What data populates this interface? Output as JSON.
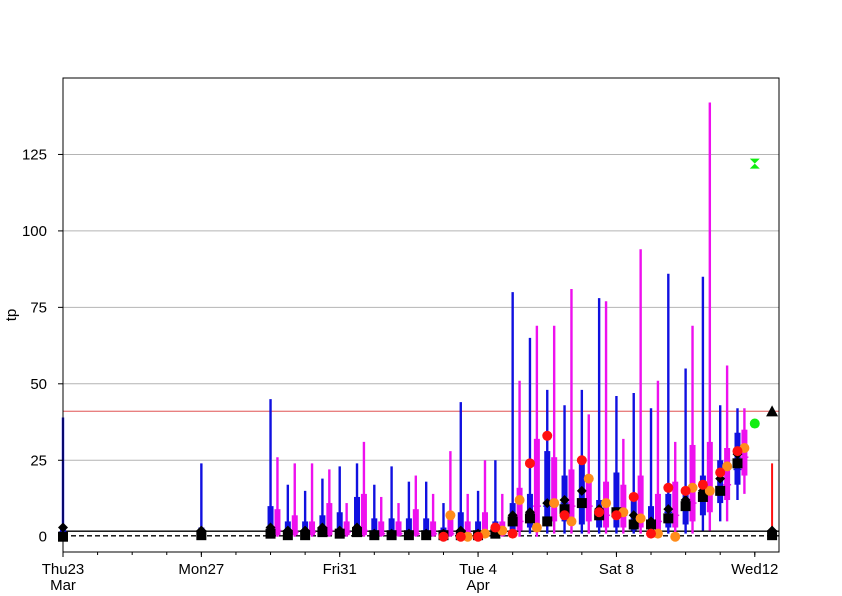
{
  "chart_data": {
    "type": "box",
    "title": "",
    "xlabel": "",
    "ylabel": "tp",
    "ylim": [
      -5,
      150
    ],
    "xlim": [
      0,
      20.7
    ],
    "y_ticks": [
      0,
      25,
      50,
      75,
      100,
      125
    ],
    "x_ticks": [
      {
        "day": 0,
        "label": "Thu23",
        "sublabel": "Mar"
      },
      {
        "day": 4,
        "label": "Mon27",
        "sublabel": ""
      },
      {
        "day": 8,
        "label": "Fri31",
        "sublabel": ""
      },
      {
        "day": 12,
        "label": "Tue 4",
        "sublabel": "Apr"
      },
      {
        "day": 16,
        "label": "Sat 8",
        "sublabel": ""
      },
      {
        "day": 20,
        "label": "Wed12",
        "sublabel": ""
      }
    ],
    "grid": "horizontal",
    "reference_lines": [
      {
        "y": 41,
        "color": "#e88080",
        "style": "solid"
      },
      {
        "y": 1.8,
        "color": "#000000",
        "style": "solid"
      },
      {
        "y": 0.3,
        "color": "#000000",
        "style": "dashed"
      }
    ],
    "series_colors": {
      "blue": "#1010e0",
      "magenta": "#ee10ee",
      "red": "#ff1010",
      "orange": "#ff8c1a",
      "green": "#10ee10",
      "black": "#000000"
    },
    "blue_boxes": [
      {
        "x": 0.0,
        "min": 0,
        "q1": 0.5,
        "q3": 3,
        "max": 39,
        "median": 1.5
      },
      {
        "x": 4.0,
        "min": 0,
        "q1": 0.3,
        "q3": 3,
        "max": 24,
        "median": 1.5
      },
      {
        "x": 6.0,
        "min": 0,
        "q1": 0.5,
        "q3": 10,
        "max": 45,
        "median": 2
      },
      {
        "x": 6.5,
        "min": 0,
        "q1": 0.5,
        "q3": 5,
        "max": 17,
        "median": 1.5
      },
      {
        "x": 7.0,
        "min": 0,
        "q1": 0.5,
        "q3": 5,
        "max": 15,
        "median": 1.5
      },
      {
        "x": 7.5,
        "min": 0,
        "q1": 0.5,
        "q3": 7,
        "max": 19,
        "median": 2
      },
      {
        "x": 8.0,
        "min": 0,
        "q1": 0.5,
        "q3": 8,
        "max": 23,
        "median": 2
      },
      {
        "x": 8.5,
        "min": 0,
        "q1": 0.5,
        "q3": 13,
        "max": 24,
        "median": 2
      },
      {
        "x": 9.0,
        "min": 0,
        "q1": 0.3,
        "q3": 6,
        "max": 17,
        "median": 1
      },
      {
        "x": 9.5,
        "min": 0,
        "q1": 0.3,
        "q3": 6,
        "max": 23,
        "median": 1
      },
      {
        "x": 10.0,
        "min": 0,
        "q1": 0.3,
        "q3": 6,
        "max": 18,
        "median": 1
      },
      {
        "x": 10.5,
        "min": 0,
        "q1": 0.3,
        "q3": 6,
        "max": 18,
        "median": 1
      },
      {
        "x": 11.0,
        "min": 0,
        "q1": 0.3,
        "q3": 3,
        "max": 11,
        "median": 1
      },
      {
        "x": 11.5,
        "min": 0,
        "q1": 0.3,
        "q3": 8,
        "max": 44,
        "median": 1
      },
      {
        "x": 12.0,
        "min": 0,
        "q1": 0.3,
        "q3": 5,
        "max": 15,
        "median": 1
      },
      {
        "x": 12.5,
        "min": 0,
        "q1": 0.5,
        "q3": 5,
        "max": 25,
        "median": 1.5
      },
      {
        "x": 13.0,
        "min": 0,
        "q1": 1,
        "q3": 11,
        "max": 80,
        "median": 4
      },
      {
        "x": 13.5,
        "min": 1,
        "q1": 3,
        "q3": 14,
        "max": 65,
        "median": 7
      },
      {
        "x": 14.0,
        "min": 1,
        "q1": 4,
        "q3": 28,
        "max": 48,
        "median": 10
      },
      {
        "x": 14.5,
        "min": 1,
        "q1": 5,
        "q3": 20,
        "max": 43,
        "median": 11
      },
      {
        "x": 15.0,
        "min": 1,
        "q1": 4,
        "q3": 24,
        "max": 48,
        "median": 12
      },
      {
        "x": 15.5,
        "min": 1,
        "q1": 3,
        "q3": 12,
        "max": 78,
        "median": 7
      },
      {
        "x": 16.0,
        "min": 1,
        "q1": 3,
        "q3": 21,
        "max": 46,
        "median": 8
      },
      {
        "x": 16.5,
        "min": 1,
        "q1": 2,
        "q3": 13,
        "max": 47,
        "median": 5
      },
      {
        "x": 17.0,
        "min": 1,
        "q1": 2,
        "q3": 10,
        "max": 42,
        "median": 4
      },
      {
        "x": 17.5,
        "min": 1,
        "q1": 3,
        "q3": 14,
        "max": 86,
        "median": 8
      },
      {
        "x": 18.0,
        "min": 1,
        "q1": 4,
        "q3": 16,
        "max": 55,
        "median": 10
      },
      {
        "x": 18.5,
        "min": 2,
        "q1": 7,
        "q3": 20,
        "max": 85,
        "median": 12
      },
      {
        "x": 19.0,
        "min": 5,
        "q1": 11,
        "q3": 25,
        "max": 43,
        "median": 15
      },
      {
        "x": 19.5,
        "min": 12,
        "q1": 17,
        "q3": 34,
        "max": 42,
        "median": 22
      }
    ],
    "magenta_boxes": [
      {
        "x": 6.2,
        "min": 0,
        "q1": 0.5,
        "q3": 9,
        "max": 26,
        "median": 2
      },
      {
        "x": 6.7,
        "min": 0,
        "q1": 0.5,
        "q3": 7,
        "max": 24,
        "median": 1.5
      },
      {
        "x": 7.2,
        "min": 0,
        "q1": 0.5,
        "q3": 5,
        "max": 24,
        "median": 1.5
      },
      {
        "x": 7.7,
        "min": 0,
        "q1": 0.5,
        "q3": 11,
        "max": 22,
        "median": 2
      },
      {
        "x": 8.2,
        "min": 0,
        "q1": 0.5,
        "q3": 5,
        "max": 11,
        "median": 1.5
      },
      {
        "x": 8.7,
        "min": 0,
        "q1": 0.5,
        "q3": 14,
        "max": 31,
        "median": 2
      },
      {
        "x": 9.2,
        "min": 0,
        "q1": 0.3,
        "q3": 5,
        "max": 13,
        "median": 1
      },
      {
        "x": 9.7,
        "min": 0,
        "q1": 0.3,
        "q3": 5,
        "max": 11,
        "median": 1
      },
      {
        "x": 10.2,
        "min": 0,
        "q1": 0.3,
        "q3": 9,
        "max": 20,
        "median": 1
      },
      {
        "x": 10.7,
        "min": 0,
        "q1": 0.3,
        "q3": 5,
        "max": 14,
        "median": 1
      },
      {
        "x": 11.2,
        "min": 0,
        "q1": 0.3,
        "q3": 7,
        "max": 28,
        "median": 1
      },
      {
        "x": 11.7,
        "min": 0,
        "q1": 0.3,
        "q3": 5,
        "max": 14,
        "median": 1
      },
      {
        "x": 12.2,
        "min": 0,
        "q1": 0.3,
        "q3": 8,
        "max": 25,
        "median": 1
      },
      {
        "x": 12.7,
        "min": 0,
        "q1": 0.3,
        "q3": 5,
        "max": 14,
        "median": 1
      },
      {
        "x": 13.2,
        "min": 0,
        "q1": 2,
        "q3": 16,
        "max": 51,
        "median": 5
      },
      {
        "x": 13.7,
        "min": 0,
        "q1": 4,
        "q3": 32,
        "max": 69,
        "median": 10
      },
      {
        "x": 14.2,
        "min": 1,
        "q1": 5,
        "q3": 26,
        "max": 69,
        "median": 11
      },
      {
        "x": 14.7,
        "min": 1,
        "q1": 4,
        "q3": 22,
        "max": 81,
        "median": 10
      },
      {
        "x": 15.2,
        "min": 1,
        "q1": 5,
        "q3": 19,
        "max": 40,
        "median": 10
      },
      {
        "x": 15.7,
        "min": 1,
        "q1": 3,
        "q3": 18,
        "max": 77,
        "median": 7
      },
      {
        "x": 16.2,
        "min": 1,
        "q1": 3,
        "q3": 17,
        "max": 32,
        "median": 7
      },
      {
        "x": 16.7,
        "min": 1,
        "q1": 3,
        "q3": 20,
        "max": 94,
        "median": 6
      },
      {
        "x": 17.2,
        "min": 1,
        "q1": 2,
        "q3": 14,
        "max": 51,
        "median": 5
      },
      {
        "x": 17.7,
        "min": 1,
        "q1": 3,
        "q3": 18,
        "max": 31,
        "median": 7
      },
      {
        "x": 18.2,
        "min": 1,
        "q1": 5,
        "q3": 30,
        "max": 69,
        "median": 11
      },
      {
        "x": 18.7,
        "min": 2,
        "q1": 8,
        "q3": 31,
        "max": 142,
        "median": 14
      },
      {
        "x": 19.2,
        "min": 5,
        "q1": 12,
        "q3": 29,
        "max": 56,
        "median": 17
      },
      {
        "x": 19.7,
        "min": 14,
        "q1": 20,
        "q3": 35,
        "max": 42,
        "median": 26
      }
    ],
    "red_points": [
      {
        "x": 11.0,
        "y": 0
      },
      {
        "x": 11.5,
        "y": 0
      },
      {
        "x": 12.0,
        "y": 0
      },
      {
        "x": 12.5,
        "y": 3
      },
      {
        "x": 13.0,
        "y": 1
      },
      {
        "x": 13.5,
        "y": 24
      },
      {
        "x": 14.0,
        "y": 33
      },
      {
        "x": 14.5,
        "y": 7
      },
      {
        "x": 15.0,
        "y": 25
      },
      {
        "x": 15.5,
        "y": 8
      },
      {
        "x": 16.0,
        "y": 7
      },
      {
        "x": 16.5,
        "y": 13
      },
      {
        "x": 17.0,
        "y": 1
      },
      {
        "x": 17.5,
        "y": 16
      },
      {
        "x": 18.0,
        "y": 15
      },
      {
        "x": 18.5,
        "y": 17
      },
      {
        "x": 19.0,
        "y": 21
      },
      {
        "x": 19.5,
        "y": 28
      }
    ],
    "orange_points": [
      {
        "x": 11.2,
        "y": 7
      },
      {
        "x": 11.7,
        "y": 0
      },
      {
        "x": 12.2,
        "y": 1
      },
      {
        "x": 12.7,
        "y": 2
      },
      {
        "x": 13.2,
        "y": 12
      },
      {
        "x": 13.7,
        "y": 3
      },
      {
        "x": 14.2,
        "y": 11
      },
      {
        "x": 14.7,
        "y": 5
      },
      {
        "x": 15.2,
        "y": 19
      },
      {
        "x": 15.7,
        "y": 11
      },
      {
        "x": 16.2,
        "y": 8
      },
      {
        "x": 16.7,
        "y": 6
      },
      {
        "x": 17.2,
        "y": 1
      },
      {
        "x": 17.7,
        "y": 0
      },
      {
        "x": 18.2,
        "y": 16
      },
      {
        "x": 18.7,
        "y": 15
      },
      {
        "x": 19.2,
        "y": 23
      },
      {
        "x": 19.7,
        "y": 29
      }
    ],
    "black_squares": [
      {
        "x": 0.0,
        "y": 0
      },
      {
        "x": 4.0,
        "y": 0.5
      },
      {
        "x": 6.0,
        "y": 1
      },
      {
        "x": 6.5,
        "y": 0.5
      },
      {
        "x": 7.0,
        "y": 0.5
      },
      {
        "x": 7.5,
        "y": 1.5
      },
      {
        "x": 8.0,
        "y": 1
      },
      {
        "x": 8.5,
        "y": 1.5
      },
      {
        "x": 9.0,
        "y": 0.5
      },
      {
        "x": 9.5,
        "y": 0.5
      },
      {
        "x": 10.0,
        "y": 0.5
      },
      {
        "x": 10.5,
        "y": 0.5
      },
      {
        "x": 11.0,
        "y": 0.5
      },
      {
        "x": 11.5,
        "y": 0.5
      },
      {
        "x": 12.0,
        "y": 0.5
      },
      {
        "x": 12.5,
        "y": 1
      },
      {
        "x": 13.0,
        "y": 5
      },
      {
        "x": 13.5,
        "y": 6
      },
      {
        "x": 14.0,
        "y": 5
      },
      {
        "x": 14.5,
        "y": 9
      },
      {
        "x": 15.0,
        "y": 11
      },
      {
        "x": 15.5,
        "y": 7
      },
      {
        "x": 16.0,
        "y": 8
      },
      {
        "x": 16.5,
        "y": 4
      },
      {
        "x": 17.0,
        "y": 4
      },
      {
        "x": 17.5,
        "y": 6
      },
      {
        "x": 18.0,
        "y": 10
      },
      {
        "x": 18.5,
        "y": 13
      },
      {
        "x": 19.0,
        "y": 15
      },
      {
        "x": 19.5,
        "y": 24
      },
      {
        "x": 20.5,
        "y": 0.5
      }
    ],
    "black_diamonds": [
      {
        "x": 0.0,
        "y": 3
      },
      {
        "x": 4.0,
        "y": 2
      },
      {
        "x": 6.0,
        "y": 3
      },
      {
        "x": 6.5,
        "y": 2
      },
      {
        "x": 7.0,
        "y": 2
      },
      {
        "x": 7.5,
        "y": 3
      },
      {
        "x": 8.0,
        "y": 2
      },
      {
        "x": 8.5,
        "y": 3
      },
      {
        "x": 9.0,
        "y": 1
      },
      {
        "x": 9.5,
        "y": 1
      },
      {
        "x": 10.0,
        "y": 1
      },
      {
        "x": 10.5,
        "y": 1
      },
      {
        "x": 11.0,
        "y": 1
      },
      {
        "x": 11.5,
        "y": 2
      },
      {
        "x": 12.0,
        "y": 1
      },
      {
        "x": 12.5,
        "y": 2
      },
      {
        "x": 13.0,
        "y": 7
      },
      {
        "x": 13.5,
        "y": 8
      },
      {
        "x": 14.0,
        "y": 11
      },
      {
        "x": 14.5,
        "y": 12
      },
      {
        "x": 15.0,
        "y": 15
      },
      {
        "x": 15.5,
        "y": 9
      },
      {
        "x": 16.0,
        "y": 8
      },
      {
        "x": 16.5,
        "y": 7
      },
      {
        "x": 17.0,
        "y": 5
      },
      {
        "x": 17.5,
        "y": 9
      },
      {
        "x": 18.0,
        "y": 12
      },
      {
        "x": 18.5,
        "y": 15
      },
      {
        "x": 19.0,
        "y": 19
      },
      {
        "x": 19.5,
        "y": 27
      },
      {
        "x": 20.5,
        "y": 2
      }
    ],
    "black_triangle": {
      "x": 20.5,
      "y": 41
    },
    "red_bar": {
      "x": 20.5,
      "min": 0,
      "max": 24
    },
    "green_points": [
      {
        "x": 20.0,
        "y": 122,
        "marker": "hourglass"
      },
      {
        "x": 20.0,
        "y": 37,
        "marker": "circle"
      }
    ]
  }
}
